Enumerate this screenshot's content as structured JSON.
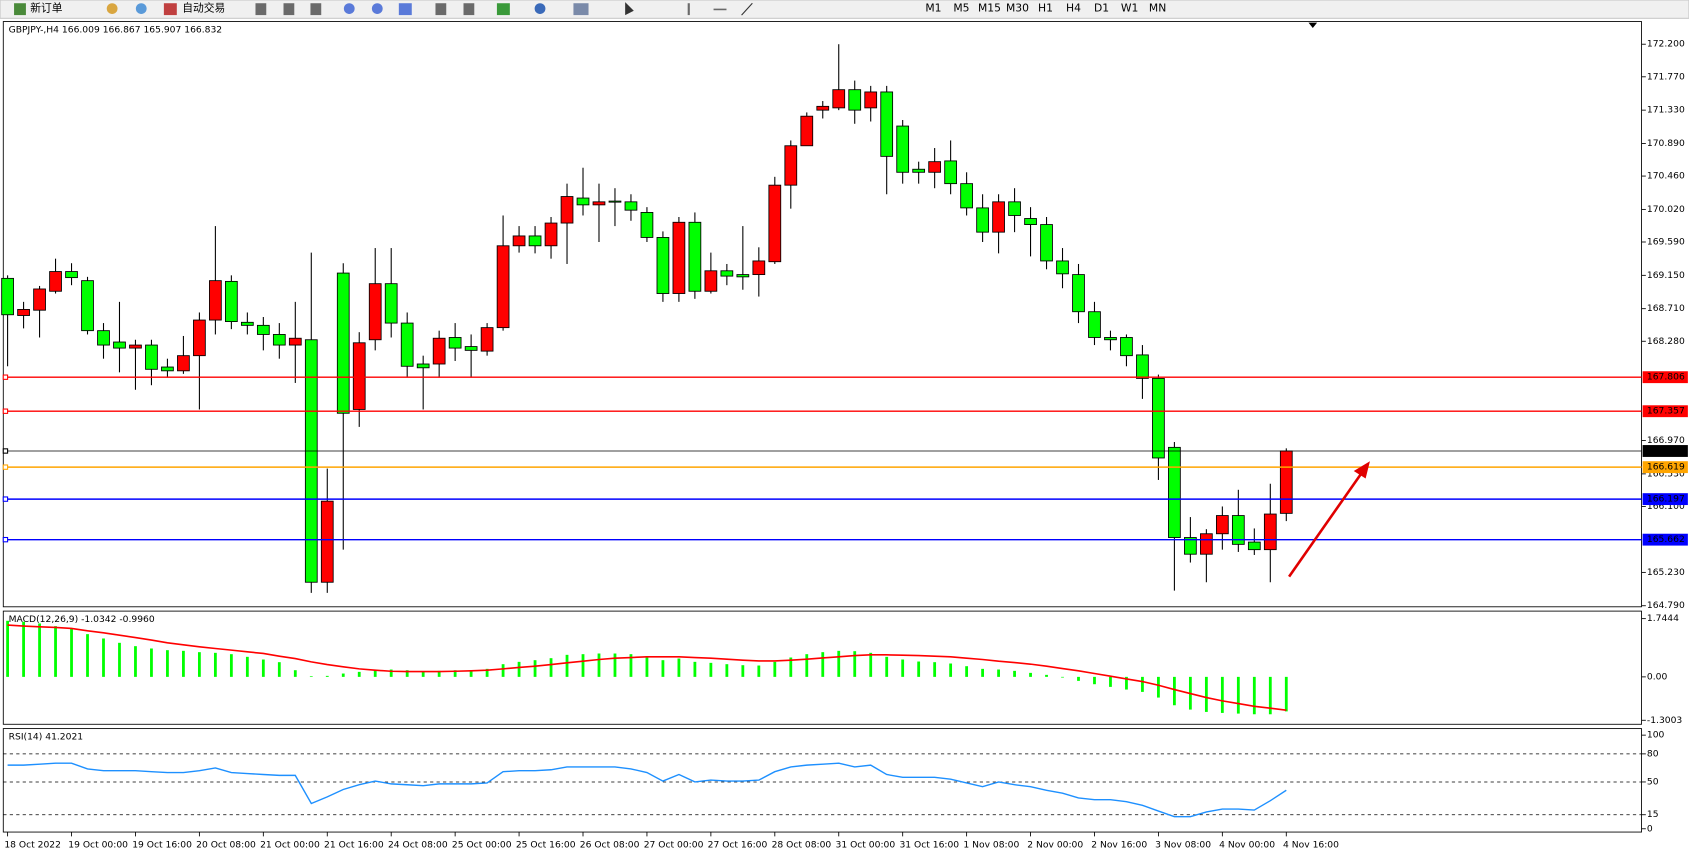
{
  "toolbar": {
    "buttons": [
      "新订单",
      "自动交易"
    ],
    "timeframes": [
      "M1",
      "M5",
      "M15",
      "M30",
      "H1",
      "H4",
      "D1",
      "W1",
      "MN"
    ]
  },
  "chart_data": [
    {
      "type": "candlestick",
      "title": "GBPJPY-,H4  166.009 166.867 165.907 166.832",
      "x": [
        "18 Oct 2022",
        null,
        null,
        null,
        "19 Oct 00:00",
        null,
        null,
        null,
        "19 Oct 16:00",
        null,
        null,
        null,
        "20 Oct 08:00",
        null,
        null,
        null,
        "21 Oct 00:00",
        null,
        null,
        null,
        "21 Oct 16:00",
        null,
        null,
        null,
        "24 Oct 08:00",
        null,
        null,
        null,
        "25 Oct 00:00",
        null,
        null,
        null,
        "25 Oct 16:00",
        null,
        null,
        null,
        "26 Oct 08:00",
        null,
        null,
        null,
        "27 Oct 00:00",
        null,
        null,
        null,
        "27 Oct 16:00",
        null,
        null,
        null,
        "28 Oct 08:00",
        null,
        null,
        null,
        "31 Oct 00:00",
        null,
        null,
        null,
        "31 Oct 16:00",
        null,
        null,
        null,
        "1 Nov 08:00",
        null,
        null,
        null,
        "2 Nov 00:00",
        null,
        null,
        null,
        "2 Nov 16:00",
        null,
        null,
        null,
        "3 Nov 08:00",
        null,
        null,
        null,
        "4 Nov 00:00",
        null,
        null,
        null,
        "4 Nov 16:00"
      ],
      "open": [
        169.11,
        168.62,
        168.69,
        168.94,
        169.2,
        169.08,
        168.42,
        168.27,
        168.19,
        168.23,
        167.94,
        167.89,
        168.09,
        168.56,
        169.07,
        168.53,
        168.49,
        168.37,
        168.23,
        168.3,
        165.1,
        169.18,
        167.38,
        168.3,
        169.04,
        168.52,
        167.98,
        167.98,
        168.33,
        168.21,
        168.15,
        168.46,
        169.54,
        169.67,
        169.54,
        169.84,
        170.17,
        170.08,
        170.13,
        170.12,
        169.98,
        169.65,
        168.91,
        169.85,
        168.94,
        169.21,
        169.16,
        169.16,
        169.33,
        170.34,
        170.86,
        171.33,
        171.36,
        171.6,
        171.36,
        171.57,
        171.12,
        170.55,
        170.51,
        170.66,
        170.36,
        170.04,
        169.72,
        170.12,
        169.9,
        169.82,
        169.34,
        169.16,
        168.67,
        168.33,
        168.33,
        168.1,
        167.79,
        166.88,
        165.69,
        165.47,
        165.74,
        165.98,
        165.63,
        165.53,
        166.009
      ],
      "high": [
        169.15,
        168.8,
        169.01,
        169.37,
        169.31,
        169.13,
        168.52,
        168.8,
        168.3,
        168.3,
        168.05,
        168.35,
        168.66,
        169.8,
        169.15,
        168.66,
        168.6,
        168.52,
        168.8,
        169.45,
        166.6,
        169.31,
        168.4,
        169.51,
        169.51,
        168.66,
        168.09,
        168.42,
        168.52,
        168.37,
        168.52,
        169.94,
        169.8,
        169.8,
        169.92,
        170.36,
        170.57,
        170.36,
        170.3,
        170.22,
        170.05,
        169.73,
        169.92,
        169.98,
        169.45,
        169.3,
        169.8,
        169.52,
        170.45,
        170.93,
        171.3,
        171.45,
        172.2,
        171.72,
        171.65,
        171.65,
        171.2,
        170.65,
        170.83,
        170.93,
        170.51,
        170.22,
        170.22,
        170.3,
        170.05,
        169.92,
        169.51,
        169.3,
        168.8,
        168.42,
        168.37,
        168.23,
        167.84,
        166.95,
        165.96,
        165.8,
        166.1,
        166.32,
        165.81,
        166.4,
        166.867
      ],
      "low": [
        167.95,
        168.45,
        168.33,
        168.91,
        169.02,
        168.37,
        168.05,
        167.87,
        167.64,
        167.7,
        167.8,
        167.85,
        167.38,
        168.37,
        168.44,
        168.37,
        168.16,
        168.05,
        167.73,
        164.96,
        164.96,
        165.53,
        167.15,
        168.16,
        168.33,
        167.8,
        167.38,
        167.8,
        168.02,
        167.8,
        168.09,
        168.42,
        169.45,
        169.44,
        169.37,
        169.3,
        169.94,
        169.59,
        169.8,
        169.87,
        169.59,
        168.8,
        168.8,
        168.84,
        168.91,
        169.02,
        168.96,
        168.87,
        169.3,
        170.03,
        170.86,
        171.22,
        171.33,
        171.15,
        171.18,
        170.22,
        170.36,
        170.36,
        170.3,
        170.22,
        169.94,
        169.59,
        169.44,
        169.72,
        169.4,
        169.23,
        168.98,
        168.52,
        168.23,
        168.16,
        167.95,
        167.52,
        166.45,
        164.99,
        165.36,
        165.1,
        165.53,
        165.5,
        165.46,
        165.1,
        165.907
      ],
      "close": [
        168.63,
        168.7,
        168.97,
        169.2,
        169.12,
        168.42,
        168.23,
        168.19,
        168.23,
        167.91,
        167.89,
        168.09,
        168.56,
        169.08,
        168.54,
        168.49,
        168.37,
        168.23,
        168.32,
        165.1,
        166.17,
        167.33,
        168.26,
        169.04,
        168.52,
        167.95,
        167.93,
        168.32,
        168.19,
        168.16,
        168.46,
        169.54,
        169.67,
        169.54,
        169.84,
        170.19,
        170.08,
        170.12,
        170.12,
        170.01,
        169.65,
        168.91,
        169.85,
        168.94,
        169.21,
        169.14,
        169.13,
        169.34,
        170.34,
        170.86,
        171.25,
        171.38,
        171.6,
        171.33,
        171.57,
        170.72,
        170.51,
        170.51,
        170.65,
        170.36,
        170.04,
        169.72,
        170.12,
        169.94,
        169.82,
        169.34,
        169.17,
        168.67,
        168.33,
        168.3,
        168.09,
        167.79,
        166.74,
        165.69,
        165.47,
        165.74,
        165.98,
        165.6,
        165.53,
        166.0,
        166.832
      ],
      "up_color": "#ff0000",
      "down_color": "#00ff00",
      "ylim": [
        164.776,
        172.499
      ],
      "yticks": [
        {
          "value": 172.2,
          "label": "172.200"
        },
        {
          "value": 171.77,
          "label": "171.770"
        },
        {
          "value": 171.33,
          "label": "171.330"
        },
        {
          "value": 170.89,
          "label": "170.890"
        },
        {
          "value": 170.46,
          "label": "170.460"
        },
        {
          "value": 170.02,
          "label": "170.020"
        },
        {
          "value": 169.59,
          "label": "169.590"
        },
        {
          "value": 169.15,
          "label": "169.150"
        },
        {
          "value": 168.71,
          "label": "168.710"
        },
        {
          "value": 168.28,
          "label": "168.280"
        },
        {
          "value": 166.97,
          "label": "166.970"
        },
        {
          "value": 166.53,
          "label": "166.530"
        },
        {
          "value": 166.1,
          "label": "166.100"
        },
        {
          "value": 165.23,
          "label": "165.230"
        },
        {
          "value": 164.79,
          "label": "164.790"
        }
      ],
      "hlines": [
        {
          "value": 167.806,
          "color": "#ff0000"
        },
        {
          "value": 167.357,
          "color": "#ff0000"
        },
        {
          "value": 166.832,
          "color": "#000000"
        },
        {
          "value": 166.619,
          "color": "#ffa500"
        },
        {
          "value": 166.197,
          "color": "#0000ff"
        },
        {
          "value": 165.662,
          "color": "#0000ff"
        }
      ]
    },
    {
      "type": "macd",
      "title": "MACD(12,26,9) -1.0342 -0.9960",
      "values": [
        1.68,
        1.65,
        1.6,
        1.52,
        1.45,
        1.28,
        1.15,
        1.02,
        0.92,
        0.85,
        0.8,
        0.78,
        0.74,
        0.72,
        0.68,
        0.6,
        0.52,
        0.44,
        0.2,
        0.02,
        0.03,
        0.1,
        0.15,
        0.22,
        0.22,
        0.2,
        0.17,
        0.18,
        0.2,
        0.2,
        0.24,
        0.38,
        0.45,
        0.5,
        0.56,
        0.66,
        0.68,
        0.7,
        0.7,
        0.68,
        0.62,
        0.5,
        0.55,
        0.45,
        0.42,
        0.38,
        0.35,
        0.34,
        0.45,
        0.58,
        0.68,
        0.74,
        0.78,
        0.77,
        0.72,
        0.6,
        0.52,
        0.46,
        0.44,
        0.4,
        0.32,
        0.24,
        0.22,
        0.18,
        0.12,
        0.06,
        -0.02,
        -0.12,
        -0.22,
        -0.3,
        -0.38,
        -0.45,
        -0.62,
        -0.85,
        -0.98,
        -1.05,
        -1.08,
        -1.1,
        -1.12,
        -1.12,
        -1.0342
      ],
      "signal": [
        1.55,
        1.52,
        1.5,
        1.48,
        1.45,
        1.38,
        1.32,
        1.25,
        1.18,
        1.1,
        1.02,
        0.96,
        0.9,
        0.85,
        0.8,
        0.75,
        0.7,
        0.62,
        0.55,
        0.45,
        0.37,
        0.3,
        0.24,
        0.2,
        0.17,
        0.16,
        0.16,
        0.16,
        0.17,
        0.18,
        0.2,
        0.24,
        0.28,
        0.32,
        0.37,
        0.42,
        0.47,
        0.52,
        0.56,
        0.58,
        0.6,
        0.6,
        0.6,
        0.58,
        0.56,
        0.53,
        0.5,
        0.48,
        0.48,
        0.5,
        0.53,
        0.57,
        0.6,
        0.64,
        0.66,
        0.66,
        0.65,
        0.64,
        0.62,
        0.6,
        0.56,
        0.52,
        0.47,
        0.43,
        0.38,
        0.32,
        0.25,
        0.18,
        0.1,
        0.02,
        -0.06,
        -0.14,
        -0.25,
        -0.38,
        -0.5,
        -0.62,
        -0.72,
        -0.8,
        -0.88,
        -0.94,
        -0.996
      ],
      "color": "#00ff00",
      "signal_color": "#ff0000",
      "ylim": [
        -1.42,
        1.97
      ],
      "yticks": [
        1.7444,
        {
          "value": 0,
          "label": "0.00"
        },
        -1.3003
      ]
    },
    {
      "type": "line",
      "title": "RSI(14) 41.2021",
      "values": [
        68,
        68,
        69,
        70,
        70,
        64,
        62,
        62,
        62,
        61,
        60,
        60,
        62,
        65,
        60,
        59,
        58,
        57,
        57,
        27,
        34,
        42,
        47,
        51,
        48,
        47,
        46,
        48,
        48,
        48,
        49,
        61,
        62,
        62,
        63,
        66,
        66,
        66,
        66,
        64,
        60,
        51,
        58,
        50,
        52,
        51,
        51,
        52,
        61,
        66,
        68,
        69,
        70,
        66,
        68,
        58,
        55,
        55,
        55,
        53,
        49,
        45,
        50,
        47,
        45,
        41,
        38,
        33,
        31,
        31,
        29,
        25,
        19,
        13,
        13,
        18,
        21,
        21,
        20,
        30,
        41.2021
      ],
      "color": "#1e90ff",
      "levels": [
        80,
        50,
        15
      ],
      "ylim": [
        -3.5,
        107
      ],
      "yticks": [
        100,
        80,
        50,
        15,
        0
      ]
    }
  ]
}
